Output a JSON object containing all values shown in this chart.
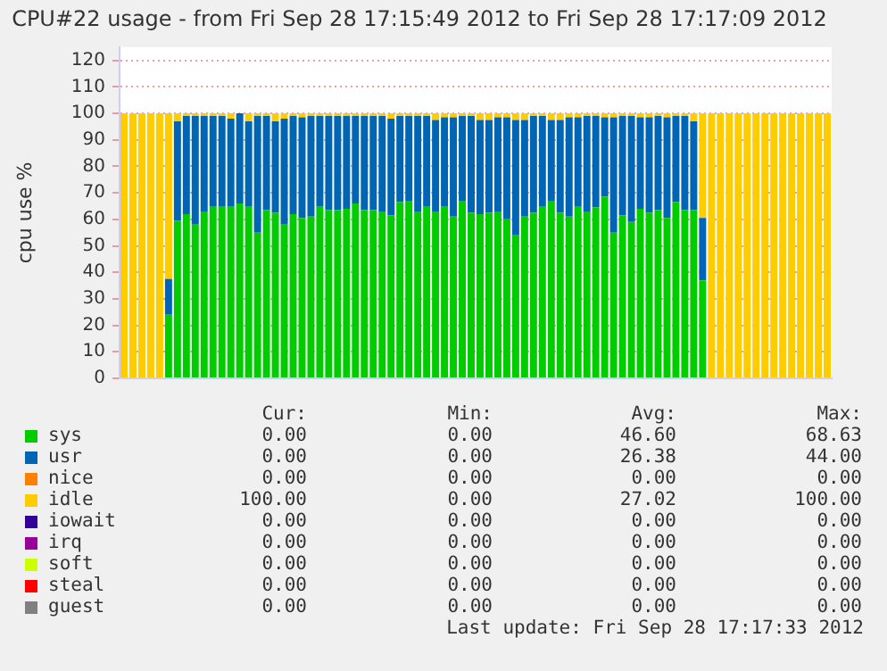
{
  "chart_data": {
    "type": "bar",
    "stacked": true,
    "title": "CPU#22 usage - from Fri Sep 28 17:15:49 2012 to Fri Sep 28 17:17:09 2012",
    "ylabel": "cpu use %",
    "categories": [
      null,
      null,
      null,
      null,
      null,
      null,
      null,
      null,
      null,
      null,
      null,
      null,
      null,
      null,
      null,
      null,
      null,
      null,
      null,
      null,
      null,
      null,
      null,
      null,
      null,
      null,
      null,
      null,
      null,
      null,
      null,
      null,
      null,
      null,
      null,
      null,
      null,
      null,
      null,
      null,
      null,
      null,
      null,
      null,
      null,
      null,
      null,
      null,
      null,
      null,
      null,
      null,
      null,
      null,
      null,
      null,
      null,
      null,
      null,
      null,
      null,
      null,
      null,
      null,
      null,
      null,
      null,
      null,
      null,
      null,
      null,
      null,
      null,
      null,
      null,
      null,
      null,
      null,
      null,
      null
    ],
    "ylim": [
      0,
      125
    ],
    "yticks": [
      0,
      10,
      20,
      30,
      40,
      50,
      60,
      70,
      80,
      90,
      100,
      110,
      120
    ],
    "grid": "y",
    "tick_labels": "y",
    "legend": "bottom",
    "series": [
      {
        "name": "sys",
        "color": "#00cc00",
        "values": [
          0,
          0,
          0,
          0,
          0,
          24,
          59.5,
          62,
          58,
          63,
          65,
          65,
          65,
          66,
          65,
          55,
          63.5,
          62.5,
          58,
          62,
          60.5,
          61,
          65,
          63.5,
          63.5,
          64,
          66,
          63.5,
          63.5,
          63,
          61.5,
          66.5,
          67,
          63,
          65,
          63,
          65,
          61,
          67,
          62.5,
          62,
          62.5,
          63,
          60,
          54,
          61,
          62.5,
          65,
          67,
          62.5,
          61,
          65,
          63,
          64.5,
          68.5,
          55,
          61.5,
          59,
          64,
          62.5,
          63.5,
          60.5,
          66.5,
          63.5,
          63.5,
          37,
          0,
          0,
          0,
          0,
          0,
          0,
          0,
          0,
          0,
          0,
          0,
          0,
          0,
          0
        ]
      },
      {
        "name": "usr",
        "color": "#0066b3",
        "values": [
          0,
          0,
          0,
          0,
          0,
          13.5,
          37.5,
          37,
          41,
          36,
          34,
          34,
          33,
          34,
          32,
          44,
          35.5,
          34.5,
          40,
          37,
          38,
          38,
          34,
          35.5,
          35.5,
          35,
          33,
          35.5,
          35.5,
          36,
          36.5,
          32.5,
          32,
          36,
          34,
          34.5,
          33.5,
          37.5,
          32,
          36.5,
          35.5,
          35,
          35.5,
          38.5,
          43.5,
          36.5,
          36.5,
          34,
          30.5,
          35,
          37.5,
          33.5,
          36,
          34.5,
          30,
          43.5,
          37.5,
          40,
          34.5,
          36,
          35.5,
          38,
          32.5,
          35.5,
          33.5,
          23.5,
          0,
          0,
          0,
          0,
          0,
          0,
          0,
          0,
          0,
          0,
          0,
          0,
          0,
          0
        ]
      },
      {
        "name": "nice",
        "color": "#ff8000",
        "values": [
          0,
          0,
          0,
          0,
          0,
          0,
          0,
          0,
          0,
          0,
          0,
          0,
          0,
          0,
          0,
          0,
          0,
          0,
          0,
          0,
          0,
          0,
          0,
          0,
          0,
          0,
          0,
          0,
          0,
          0,
          0,
          0,
          0,
          0,
          0,
          0,
          0,
          0,
          0,
          0,
          0,
          0,
          0,
          0,
          0,
          0,
          0,
          0,
          0,
          0,
          0,
          0,
          0,
          0,
          0,
          0,
          0,
          0,
          0,
          0,
          0,
          0,
          0,
          0,
          0,
          0,
          0,
          0,
          0,
          0,
          0,
          0,
          0,
          0,
          0,
          0,
          0,
          0,
          0,
          0
        ]
      },
      {
        "name": "idle",
        "color": "#ffcc00",
        "values": [
          100,
          100,
          100,
          100,
          100,
          62.5,
          3,
          1,
          1,
          1,
          1,
          1,
          2,
          0,
          3,
          1,
          1,
          3,
          2,
          1,
          1.5,
          1,
          1,
          1,
          1,
          1,
          1,
          1,
          1,
          1,
          2,
          1,
          1,
          1,
          1,
          2.5,
          1.5,
          1.5,
          1,
          1,
          2.5,
          2.5,
          1.5,
          1.5,
          2.5,
          2.5,
          1,
          1,
          2.5,
          2.5,
          1.5,
          1.5,
          1,
          1,
          1.5,
          1.5,
          1,
          1,
          1.5,
          1.5,
          1,
          1.5,
          1,
          1,
          3,
          39.5,
          100,
          100,
          100,
          100,
          100,
          100,
          100,
          100,
          100,
          100,
          100,
          100,
          100,
          100
        ]
      },
      {
        "name": "iowait",
        "color": "#330099",
        "values": [
          0,
          0,
          0,
          0,
          0,
          0,
          0,
          0,
          0,
          0,
          0,
          0,
          0,
          0,
          0,
          0,
          0,
          0,
          0,
          0,
          0,
          0,
          0,
          0,
          0,
          0,
          0,
          0,
          0,
          0,
          0,
          0,
          0,
          0,
          0,
          0,
          0,
          0,
          0,
          0,
          0,
          0,
          0,
          0,
          0,
          0,
          0,
          0,
          0,
          0,
          0,
          0,
          0,
          0,
          0,
          0,
          0,
          0,
          0,
          0,
          0,
          0,
          0,
          0,
          0,
          0,
          0,
          0,
          0,
          0,
          0,
          0,
          0,
          0,
          0,
          0,
          0,
          0,
          0,
          0
        ]
      },
      {
        "name": "irq",
        "color": "#990099",
        "values": [
          0,
          0,
          0,
          0,
          0,
          0,
          0,
          0,
          0,
          0,
          0,
          0,
          0,
          0,
          0,
          0,
          0,
          0,
          0,
          0,
          0,
          0,
          0,
          0,
          0,
          0,
          0,
          0,
          0,
          0,
          0,
          0,
          0,
          0,
          0,
          0,
          0,
          0,
          0,
          0,
          0,
          0,
          0,
          0,
          0,
          0,
          0,
          0,
          0,
          0,
          0,
          0,
          0,
          0,
          0,
          0,
          0,
          0,
          0,
          0,
          0,
          0,
          0,
          0,
          0,
          0,
          0,
          0,
          0,
          0,
          0,
          0,
          0,
          0,
          0,
          0,
          0,
          0,
          0,
          0
        ]
      },
      {
        "name": "soft",
        "color": "#ccff00",
        "values": [
          0,
          0,
          0,
          0,
          0,
          0,
          0,
          0,
          0,
          0,
          0,
          0,
          0,
          0,
          0,
          0,
          0,
          0,
          0,
          0,
          0,
          0,
          0,
          0,
          0,
          0,
          0,
          0,
          0,
          0,
          0,
          0,
          0,
          0,
          0,
          0,
          0,
          0,
          0,
          0,
          0,
          0,
          0,
          0,
          0,
          0,
          0,
          0,
          0,
          0,
          0,
          0,
          0,
          0,
          0,
          0,
          0,
          0,
          0,
          0,
          0,
          0,
          0,
          0,
          0,
          0,
          0,
          0,
          0,
          0,
          0,
          0,
          0,
          0,
          0,
          0,
          0,
          0,
          0,
          0
        ]
      },
      {
        "name": "steal",
        "color": "#ff0000",
        "values": [
          0,
          0,
          0,
          0,
          0,
          0,
          0,
          0,
          0,
          0,
          0,
          0,
          0,
          0,
          0,
          0,
          0,
          0,
          0,
          0,
          0,
          0,
          0,
          0,
          0,
          0,
          0,
          0,
          0,
          0,
          0,
          0,
          0,
          0,
          0,
          0,
          0,
          0,
          0,
          0,
          0,
          0,
          0,
          0,
          0,
          0,
          0,
          0,
          0,
          0,
          0,
          0,
          0,
          0,
          0,
          0,
          0,
          0,
          0,
          0,
          0,
          0,
          0,
          0,
          0,
          0,
          0,
          0,
          0,
          0,
          0,
          0,
          0,
          0,
          0,
          0,
          0,
          0,
          0,
          0
        ]
      },
      {
        "name": "guest",
        "color": "#808080",
        "values": [
          0,
          0,
          0,
          0,
          0,
          0,
          0,
          0,
          0,
          0,
          0,
          0,
          0,
          0,
          0,
          0,
          0,
          0,
          0,
          0,
          0,
          0,
          0,
          0,
          0,
          0,
          0,
          0,
          0,
          0,
          0,
          0,
          0,
          0,
          0,
          0,
          0,
          0,
          0,
          0,
          0,
          0,
          0,
          0,
          0,
          0,
          0,
          0,
          0,
          0,
          0,
          0,
          0,
          0,
          0,
          0,
          0,
          0,
          0,
          0,
          0,
          0,
          0,
          0,
          0,
          0,
          0,
          0,
          0,
          0,
          0,
          0,
          0,
          0,
          0,
          0,
          0,
          0,
          0,
          0
        ]
      }
    ],
    "annotations": [
      "Cur:",
      "Min:",
      "Avg:",
      "Max:",
      "0.00",
      "0.00",
      "46.60",
      "68.63",
      "0.00",
      "0.00",
      "26.38",
      "44.00",
      "0.00",
      "0.00",
      "0.00",
      "0.00",
      "100.00",
      "0.00",
      "27.02",
      "100.00",
      "0.00",
      "0.00",
      "0.00",
      "0.00",
      "0.00",
      "0.00",
      "0.00",
      "0.00",
      "0.00",
      "0.00",
      "0.00",
      "0.00",
      "0.00",
      "0.00",
      "0.00",
      "0.00",
      "0.00",
      "0.00",
      "0.00",
      "0.00",
      "Last update: Fri Sep 28 17:17:33 2012"
    ]
  }
}
